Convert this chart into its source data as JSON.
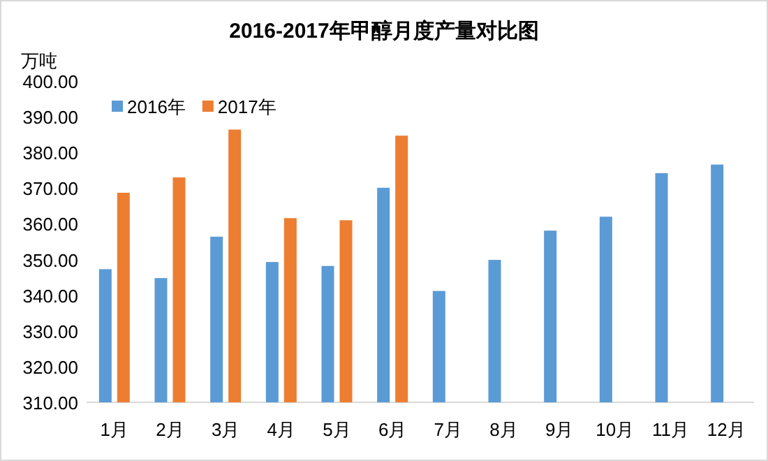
{
  "chart_data": {
    "type": "bar",
    "title": "2016-2017年甲醇月度产量对比图",
    "ylabel": "万吨",
    "categories": [
      "1月",
      "2月",
      "3月",
      "4月",
      "5月",
      "6月",
      "7月",
      "8月",
      "9月",
      "10月",
      "11月",
      "12月"
    ],
    "series": [
      {
        "name": "2016年",
        "color": "#5b9bd5",
        "values": [
          347.3,
          344.8,
          356.4,
          349.3,
          348.2,
          370.1,
          341.2,
          349.9,
          358.1,
          362.0,
          374.2,
          376.6
        ]
      },
      {
        "name": "2017年",
        "color": "#ed7d31",
        "values": [
          368.7,
          373.0,
          386.4,
          361.6,
          361.0,
          384.7,
          null,
          null,
          null,
          null,
          null,
          null
        ]
      }
    ],
    "ylim": [
      310,
      400
    ],
    "yticks": [
      {
        "value": 310,
        "label": "310.00"
      },
      {
        "value": 320,
        "label": "320.00"
      },
      {
        "value": 330,
        "label": "330.00"
      },
      {
        "value": 340,
        "label": "340.00"
      },
      {
        "value": 350,
        "label": "350.00"
      },
      {
        "value": 360,
        "label": "360.00"
      },
      {
        "value": 370,
        "label": "370.00"
      },
      {
        "value": 380,
        "label": "380.00"
      },
      {
        "value": 390,
        "label": "390.00"
      },
      {
        "value": 400,
        "label": "400.00"
      }
    ],
    "grid": false,
    "legend": "top left"
  }
}
